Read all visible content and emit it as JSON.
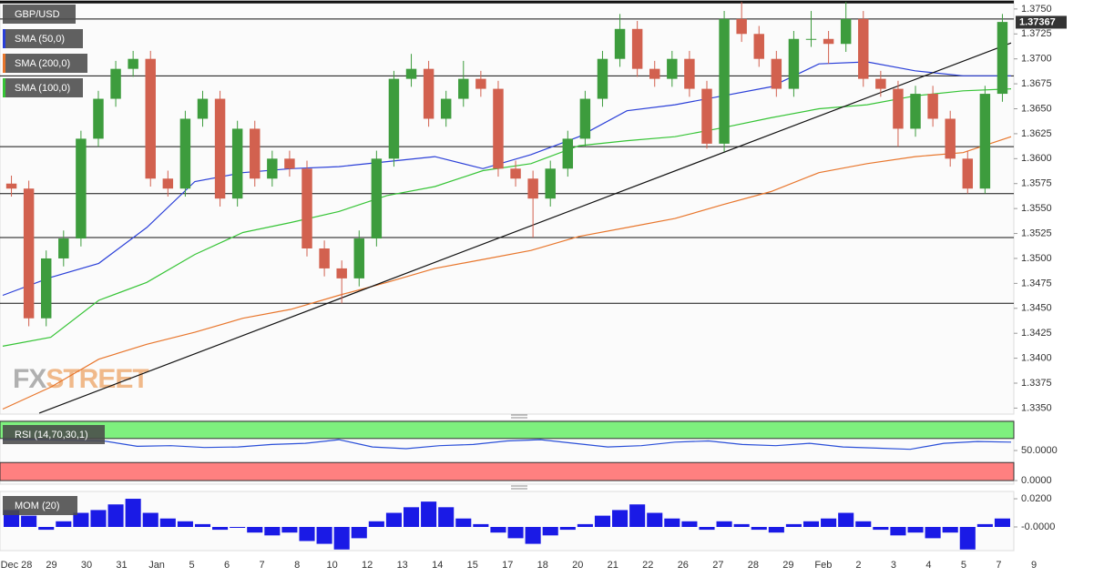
{
  "chart_data": {
    "type": "candlestick",
    "symbol": "GBP/USD",
    "last_price": 1.37367,
    "ylim": [
      1.3344,
      1.3759
    ],
    "yticks": [
      {
        "value": 1.335,
        "label": "1.3350"
      },
      {
        "value": 1.3375,
        "label": "1.3375"
      },
      {
        "value": 1.34,
        "label": "1.3400"
      },
      {
        "value": 1.3425,
        "label": "1.3425"
      },
      {
        "value": 1.345,
        "label": "1.3450"
      },
      {
        "value": 1.3475,
        "label": "1.3475"
      },
      {
        "value": 1.35,
        "label": "1.3500"
      },
      {
        "value": 1.3525,
        "label": "1.3525"
      },
      {
        "value": 1.355,
        "label": "1.3550"
      },
      {
        "value": 1.3575,
        "label": "1.3575"
      },
      {
        "value": 1.36,
        "label": "1.3600"
      },
      {
        "value": 1.3625,
        "label": "1.3625"
      },
      {
        "value": 1.365,
        "label": "1.3650"
      },
      {
        "value": 1.3675,
        "label": "1.3675"
      },
      {
        "value": 1.37,
        "label": "1.3700"
      },
      {
        "value": 1.3725,
        "label": "1.3725"
      },
      {
        "value": 1.375,
        "label": "1.3750"
      }
    ],
    "x_labels": [
      "Dec 28",
      "29",
      "30",
      "31",
      "Jan",
      "5",
      "6",
      "7",
      "8",
      "10",
      "12",
      "13",
      "14",
      "15",
      "17",
      "18",
      "20",
      "21",
      "22",
      "26",
      "27",
      "28",
      "29",
      "Feb",
      "2",
      "3",
      "4",
      "5",
      "7",
      "9"
    ],
    "up_color": "#3d9c3d",
    "down_color": "#d2614f",
    "ohlc": [
      [
        1.3575,
        1.3583,
        1.3562,
        1.357
      ],
      [
        1.357,
        1.3578,
        1.3432,
        1.344
      ],
      [
        1.344,
        1.3508,
        1.3432,
        1.35
      ],
      [
        1.35,
        1.3528,
        1.3492,
        1.352
      ],
      [
        1.352,
        1.3628,
        1.3512,
        1.362
      ],
      [
        1.362,
        1.3668,
        1.3612,
        1.366
      ],
      [
        1.366,
        1.3698,
        1.3652,
        1.369
      ],
      [
        1.369,
        1.3708,
        1.3682,
        1.37
      ],
      [
        1.37,
        1.3708,
        1.3572,
        1.358
      ],
      [
        1.358,
        1.3588,
        1.3562,
        1.357
      ],
      [
        1.357,
        1.3648,
        1.3562,
        1.364
      ],
      [
        1.364,
        1.3668,
        1.3632,
        1.366
      ],
      [
        1.366,
        1.3668,
        1.3552,
        1.356
      ],
      [
        1.356,
        1.3638,
        1.3552,
        1.363
      ],
      [
        1.363,
        1.3638,
        1.3572,
        1.358
      ],
      [
        1.358,
        1.3608,
        1.3572,
        1.36
      ],
      [
        1.36,
        1.3608,
        1.3582,
        1.359
      ],
      [
        1.359,
        1.3598,
        1.3502,
        1.351
      ],
      [
        1.351,
        1.3518,
        1.3482,
        1.349
      ],
      [
        1.349,
        1.3498,
        1.3455,
        1.348
      ],
      [
        1.348,
        1.3528,
        1.3472,
        1.352
      ],
      [
        1.352,
        1.3608,
        1.3512,
        1.36
      ],
      [
        1.36,
        1.3688,
        1.3592,
        1.368
      ],
      [
        1.368,
        1.3705,
        1.3672,
        1.369
      ],
      [
        1.369,
        1.3698,
        1.3632,
        1.364
      ],
      [
        1.364,
        1.3668,
        1.3632,
        1.366
      ],
      [
        1.366,
        1.3698,
        1.3652,
        1.368
      ],
      [
        1.368,
        1.3688,
        1.3662,
        1.367
      ],
      [
        1.367,
        1.3678,
        1.3582,
        1.359
      ],
      [
        1.359,
        1.3598,
        1.3572,
        1.358
      ],
      [
        1.358,
        1.3588,
        1.3521,
        1.356
      ],
      [
        1.356,
        1.3598,
        1.3552,
        1.359
      ],
      [
        1.359,
        1.3628,
        1.3582,
        1.362
      ],
      [
        1.362,
        1.3668,
        1.3612,
        1.366
      ],
      [
        1.366,
        1.3708,
        1.3652,
        1.37
      ],
      [
        1.37,
        1.3745,
        1.3692,
        1.373
      ],
      [
        1.373,
        1.3738,
        1.3682,
        1.369
      ],
      [
        1.369,
        1.3698,
        1.3672,
        1.368
      ],
      [
        1.368,
        1.3708,
        1.3672,
        1.37
      ],
      [
        1.37,
        1.3708,
        1.3662,
        1.367
      ],
      [
        1.367,
        1.3678,
        1.361,
        1.3615
      ],
      [
        1.3615,
        1.3748,
        1.3607,
        1.374
      ],
      [
        1.374,
        1.3757,
        1.3717,
        1.3725
      ],
      [
        1.3725,
        1.3733,
        1.3692,
        1.37
      ],
      [
        1.37,
        1.3708,
        1.3662,
        1.367
      ],
      [
        1.367,
        1.3728,
        1.3662,
        1.372
      ],
      [
        1.372,
        1.3748,
        1.3712,
        1.372
      ],
      [
        1.372,
        1.3728,
        1.3695,
        1.3715
      ],
      [
        1.3715,
        1.3757,
        1.3707,
        1.374
      ],
      [
        1.374,
        1.3748,
        1.3672,
        1.368
      ],
      [
        1.368,
        1.3688,
        1.3662,
        1.367
      ],
      [
        1.367,
        1.3678,
        1.3612,
        1.363
      ],
      [
        1.363,
        1.3673,
        1.3622,
        1.3665
      ],
      [
        1.3665,
        1.3673,
        1.3632,
        1.364
      ],
      [
        1.364,
        1.3648,
        1.3592,
        1.36
      ],
      [
        1.36,
        1.3608,
        1.3565,
        1.357
      ],
      [
        1.357,
        1.3673,
        1.3565,
        1.3665
      ],
      [
        1.3665,
        1.3745,
        1.3657,
        1.3737
      ]
    ],
    "overlays": [
      {
        "name": "SMA (50,0)",
        "color": "#2a3fd8",
        "values": [
          1.3463,
          1.3481,
          1.3495,
          1.3531,
          1.3577,
          1.3586,
          1.359,
          1.3592,
          1.3597,
          1.3602,
          1.359,
          1.3604,
          1.3622,
          1.3648,
          1.3654,
          1.3663,
          1.3672,
          1.3695,
          1.3697,
          1.3688,
          1.3683,
          1.3683
        ]
      },
      {
        "name": "SMA (200,0)",
        "color": "#e8762c",
        "values": [
          1.3349,
          1.3371,
          1.3399,
          1.3414,
          1.3426,
          1.344,
          1.3449,
          1.3463,
          1.3476,
          1.349,
          1.3499,
          1.3508,
          1.3522,
          1.3531,
          1.354,
          1.3554,
          1.3567,
          1.3586,
          1.3595,
          1.3602,
          1.3606,
          1.3622
        ]
      },
      {
        "name": "SMA (100,0)",
        "color": "#36c436",
        "values": [
          1.3412,
          1.3421,
          1.3458,
          1.3476,
          1.3504,
          1.3526,
          1.3536,
          1.3547,
          1.3563,
          1.3572,
          1.3588,
          1.3595,
          1.3613,
          1.3618,
          1.3622,
          1.3631,
          1.3641,
          1.365,
          1.3654,
          1.3663,
          1.3668,
          1.367
        ]
      }
    ],
    "levels": [
      1.3757,
      1.374,
      1.3683,
      1.3612,
      1.3565,
      1.3521,
      1.3455
    ],
    "trendline": [
      [
        1.6,
        1.3345
      ],
      [
        57.5,
        1.3716
      ]
    ],
    "watermark": [
      "FX",
      "STREET"
    ],
    "rsi": {
      "name": "RSI (14,70,30,1)",
      "ylim": [
        -6,
        100
      ],
      "overbought": 70,
      "oversold": 30,
      "color": "#2a4fd8",
      "yticks": [
        {
          "value": 50,
          "label": "50.0000"
        },
        {
          "value": 0,
          "label": "0.0000"
        }
      ],
      "values": [
        68,
        68,
        67,
        66,
        57,
        58,
        55,
        56,
        60,
        62,
        68,
        56,
        53,
        58,
        60,
        66,
        68,
        62,
        56,
        58,
        64,
        66,
        60,
        58,
        62,
        56,
        54,
        52,
        62,
        65,
        64
      ]
    },
    "mom": {
      "name": "MOM (20)",
      "ylim": [
        -0.0168,
        0.0252
      ],
      "color": "#1a1ae6",
      "yticks": [
        {
          "value": 0.02,
          "label": "0.0200"
        },
        {
          "value": 0,
          "label": "-0.0000"
        }
      ],
      "values": [
        0.012,
        0.008,
        -0.002,
        0.004,
        0.01,
        0.012,
        0.016,
        0.02,
        0.01,
        0.006,
        0.004,
        0.002,
        -0.002,
        0,
        -0.004,
        -0.006,
        -0.004,
        -0.01,
        -0.012,
        -0.016,
        -0.008,
        0.004,
        0.01,
        0.014,
        0.018,
        0.014,
        0.006,
        0.002,
        -0.004,
        -0.008,
        -0.012,
        -0.006,
        -0.002,
        0.002,
        0.008,
        0.012,
        0.016,
        0.01,
        0.006,
        0.004,
        -0.002,
        0.004,
        0.002,
        -0.002,
        -0.004,
        0.002,
        0.004,
        0.006,
        0.01,
        0.004,
        -0.002,
        -0.006,
        -0.004,
        -0.008,
        -0.004,
        -0.016,
        0.002,
        0.006
      ]
    }
  }
}
